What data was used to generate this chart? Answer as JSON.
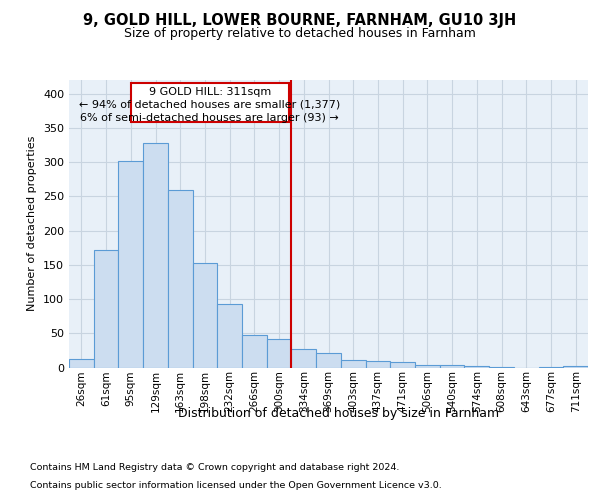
{
  "title1": "9, GOLD HILL, LOWER BOURNE, FARNHAM, GU10 3JH",
  "title2": "Size of property relative to detached houses in Farnham",
  "xlabel": "Distribution of detached houses by size in Farnham",
  "ylabel": "Number of detached properties",
  "bar_color": "#ccddf0",
  "bar_edge_color": "#5b9bd5",
  "grid_color": "#c8d4e0",
  "background_color": "#e8f0f8",
  "annotation_box_color": "#cc0000",
  "vline_color": "#cc0000",
  "annotation_text_line1": "9 GOLD HILL: 311sqm",
  "annotation_text_line2": "← 94% of detached houses are smaller (1,377)",
  "annotation_text_line3": "6% of semi-detached houses are larger (93) →",
  "footer1": "Contains HM Land Registry data © Crown copyright and database right 2024.",
  "footer2": "Contains public sector information licensed under the Open Government Licence v3.0.",
  "categories": [
    "26sqm",
    "61sqm",
    "95sqm",
    "129sqm",
    "163sqm",
    "198sqm",
    "232sqm",
    "266sqm",
    "300sqm",
    "334sqm",
    "369sqm",
    "403sqm",
    "437sqm",
    "471sqm",
    "506sqm",
    "540sqm",
    "574sqm",
    "608sqm",
    "643sqm",
    "677sqm",
    "711sqm"
  ],
  "values": [
    13,
    172,
    301,
    328,
    259,
    152,
    93,
    48,
    42,
    27,
    21,
    11,
    10,
    8,
    3,
    3,
    2,
    1,
    0,
    1,
    2
  ],
  "ylim": [
    0,
    420
  ],
  "yticks": [
    0,
    50,
    100,
    150,
    200,
    250,
    300,
    350,
    400
  ],
  "vline_x_index": 8.5
}
